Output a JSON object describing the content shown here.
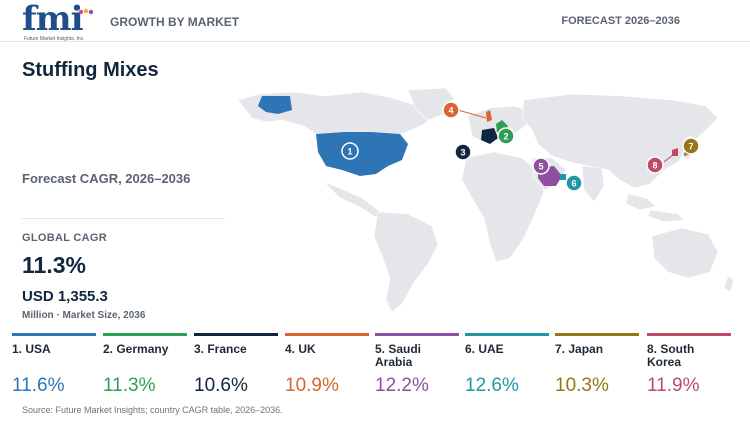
{
  "header": {
    "logo_text": "fmi",
    "logo_tagline": "Future Market Insights, Inc.",
    "left_label": "GROWTH BY MARKET",
    "right_label": "FORECAST 2026–2036"
  },
  "title": "Stuffing Mixes",
  "subtitle": "Forecast CAGR, 2026–2036",
  "global": {
    "label": "GLOBAL CAGR",
    "value": "11.3%",
    "market_size": "USD 1,355.3",
    "market_size_caption": "Million · Market Size, 2036"
  },
  "countries": [
    {
      "rank": "1",
      "name": "1. USA",
      "cagr": "11.6%",
      "color": "#2e75b6"
    },
    {
      "rank": "2",
      "name": "2. Germany",
      "cagr": "11.3%",
      "color": "#2e9e55"
    },
    {
      "rank": "3",
      "name": "3. France",
      "cagr": "10.6%",
      "color": "#12263f"
    },
    {
      "rank": "4",
      "name": "4. UK",
      "cagr": "10.9%",
      "color": "#d9662f"
    },
    {
      "rank": "5",
      "name": "5. Saudi Arabia",
      "cagr": "12.2%",
      "color": "#8e4fa0"
    },
    {
      "rank": "6",
      "name": "6. UAE",
      "cagr": "12.6%",
      "color": "#1f97a5"
    },
    {
      "rank": "7",
      "name": "7. Japan",
      "cagr": "10.3%",
      "color": "#9a7515"
    },
    {
      "rank": "8",
      "name": "8. South Korea",
      "cagr": "11.9%",
      "color": "#c04a64"
    }
  ],
  "source": "Source: Future Market Insights; country CAGR table, 2026–2036."
}
